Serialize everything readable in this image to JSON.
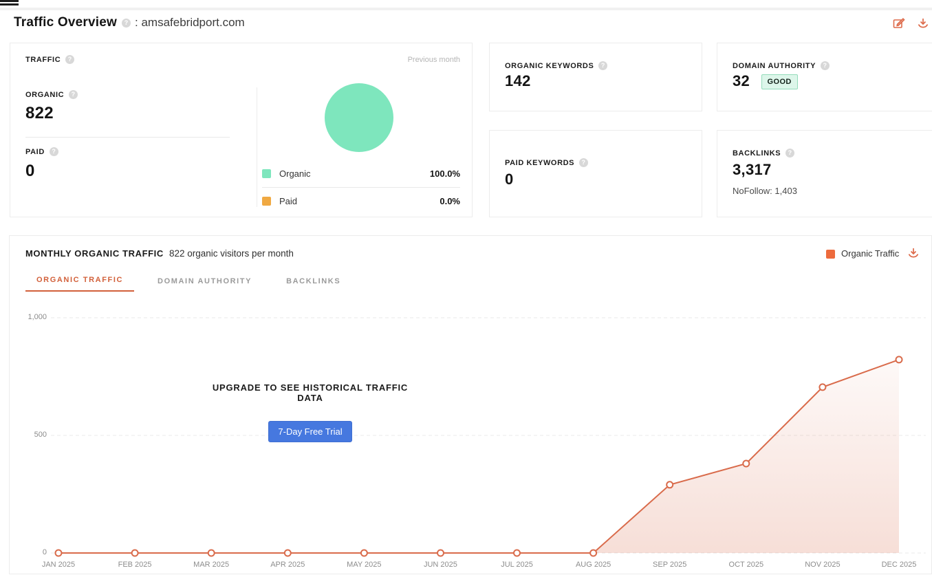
{
  "icons": {
    "info_glyph": "?"
  },
  "header": {
    "title": "Traffic Overview",
    "separator": ": ",
    "domain": "amsafebridport.com"
  },
  "traffic_card": {
    "title": "TRAFFIC",
    "period_label": "Previous month",
    "organic": {
      "label": "ORGANIC",
      "value": "822"
    },
    "paid": {
      "label": "PAID",
      "value": "0"
    },
    "legend": [
      {
        "label": "Organic",
        "percent": "100.0%",
        "color": "#7ee6bd"
      },
      {
        "label": "Paid",
        "percent": "0.0%",
        "color": "#f0a942"
      }
    ]
  },
  "stat_cards": {
    "organic_keywords": {
      "label": "ORGANIC KEYWORDS",
      "value": "142"
    },
    "domain_authority": {
      "label": "DOMAIN AUTHORITY",
      "value": "32",
      "badge": "GOOD"
    },
    "paid_keywords": {
      "label": "PAID KEYWORDS",
      "value": "0"
    },
    "backlinks": {
      "label": "BACKLINKS",
      "value": "3,317",
      "nofollow": "NoFollow: 1,403"
    }
  },
  "monthly": {
    "title": "MONTHLY ORGANIC TRAFFIC",
    "subtitle": "822 organic visitors per month",
    "legend_label": "Organic Traffic",
    "legend_color": "#ed6b3d",
    "tabs": [
      {
        "label": "ORGANIC TRAFFIC",
        "active": true
      },
      {
        "label": "DOMAIN AUTHORITY",
        "active": false
      },
      {
        "label": "BACKLINKS",
        "active": false
      }
    ],
    "upgrade": {
      "message": "UPGRADE TO SEE HISTORICAL TRAFFIC DATA",
      "button": "7-Day Free Trial"
    }
  },
  "chart_data": {
    "type": "line",
    "title": "Monthly Organic Traffic",
    "x": [
      "JAN 2025",
      "FEB 2025",
      "MAR 2025",
      "APR 2025",
      "MAY 2025",
      "JUN 2025",
      "JUL 2025",
      "AUG 2025",
      "SEP 2025",
      "OCT 2025",
      "NOV 2025",
      "DEC 2025"
    ],
    "series": [
      {
        "name": "Organic Traffic",
        "values": [
          0,
          0,
          0,
          0,
          0,
          0,
          0,
          0,
          290,
          380,
          705,
          822
        ],
        "color": "#d96b4b"
      }
    ],
    "yticks": [
      {
        "value": 0,
        "label": "0"
      },
      {
        "value": 500,
        "label": "500"
      },
      {
        "value": 1000,
        "label": "1,000"
      }
    ],
    "ylim": [
      0,
      1000
    ],
    "grid": "dashed-horizontal",
    "area_fill": true,
    "legend_position": "top-right"
  },
  "colors": {
    "accent_orange": "#dd6a4a",
    "tab_active": "#d2603a",
    "pie_organic": "#7ee6bd",
    "pie_paid": "#f0a942",
    "chart_line": "#d96b4b",
    "trial_button": "#4678df",
    "badge_bg": "#ddf6ea",
    "badge_border": "#93dcba"
  }
}
